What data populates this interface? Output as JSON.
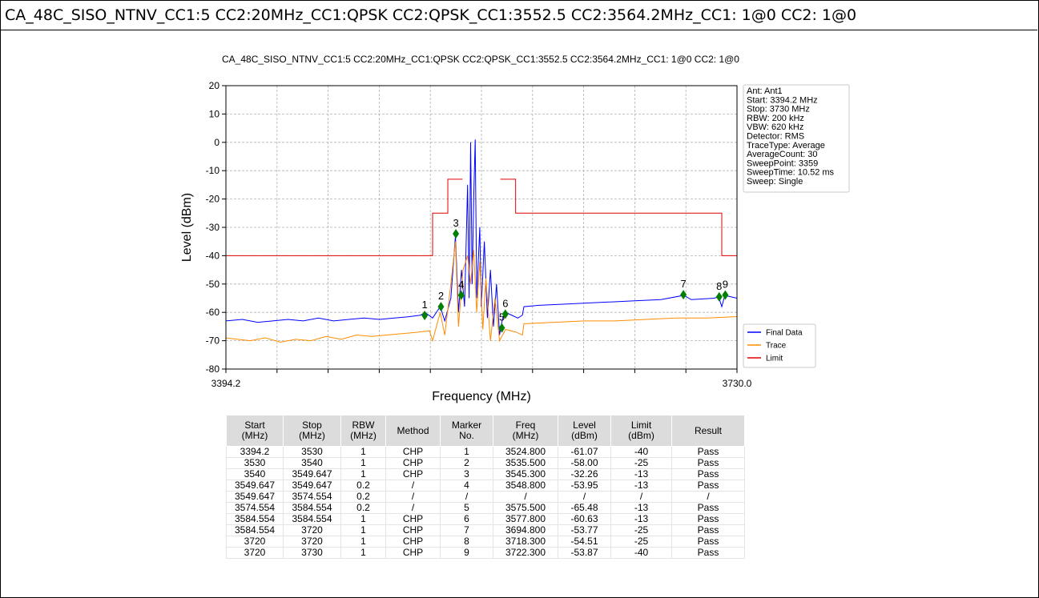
{
  "header": {
    "title": "CA_48C_SISO_NTNV_CC1:5 CC2:20MHz_CC1:QPSK CC2:QPSK_CC1:3552.5 CC2:3564.2MHz_CC1: 1@0 CC2: 1@0"
  },
  "chart_data": {
    "type": "line",
    "title": "CA_48C_SISO_NTNV_CC1:5 CC2:20MHz_CC1:QPSK CC2:QPSK_CC1:3552.5 CC2:3564.2MHz_CC1: 1@0 CC2: 1@0",
    "xlabel": "Frequency (MHz)",
    "ylabel": "Level (dBm)",
    "xlim": [
      3394.2,
      3730
    ],
    "ylim": [
      -80,
      20
    ],
    "xticks": [
      3394.2,
      {
        "value": 3730,
        "label": "3730.0"
      }
    ],
    "xgrid": [
      3427.78,
      3461.36,
      3494.94,
      3528.52,
      3562.1,
      3595.68,
      3629.26,
      3662.84,
      3696.42
    ],
    "yticks": [
      -80,
      -70,
      -60,
      -50,
      -40,
      -30,
      -20,
      -10,
      0,
      10,
      20
    ],
    "grid": true,
    "legend": "lower right",
    "series": [
      {
        "name": "Final Data",
        "color": "#0000ff",
        "x": [
          3394.2,
          3405,
          3415,
          3425,
          3435,
          3445,
          3455,
          3465,
          3475,
          3485,
          3495,
          3505,
          3515,
          3522,
          3525,
          3530,
          3535,
          3538,
          3542,
          3545,
          3547,
          3549,
          3551,
          3553,
          3554,
          3555,
          3556,
          3557,
          3558,
          3559,
          3561,
          3562,
          3564,
          3566,
          3568,
          3570,
          3572,
          3574,
          3576,
          3578,
          3582,
          3586,
          3589,
          3590,
          3600,
          3620,
          3640,
          3660,
          3680,
          3695,
          3700,
          3715,
          3718,
          3720,
          3722,
          3730
        ],
        "values": [
          -63,
          -62.5,
          -63.5,
          -63,
          -62.5,
          -63,
          -62,
          -63,
          -62.5,
          -62,
          -62.5,
          -62,
          -61.5,
          -61,
          -60,
          -62,
          -58,
          -63,
          -55,
          -33,
          -60,
          -45,
          -58,
          -15,
          -55,
          0,
          -50,
          -20,
          1,
          -55,
          -30,
          -58,
          -35,
          -62,
          -45,
          -65,
          -50,
          -68,
          -62,
          -60,
          -61,
          -62,
          -61,
          -58,
          -57.5,
          -57,
          -56.5,
          -56,
          -55.5,
          -54,
          -55.5,
          -55,
          -54.5,
          -58,
          -54,
          -55
        ]
      },
      {
        "name": "Trace",
        "color": "#ff8c00",
        "x": [
          3394.2,
          3410,
          3420,
          3430,
          3440,
          3450,
          3460,
          3470,
          3480,
          3490,
          3500,
          3510,
          3520,
          3528,
          3530,
          3535,
          3538,
          3542,
          3545,
          3547,
          3550,
          3553,
          3555,
          3557,
          3559,
          3561,
          3563,
          3565,
          3568,
          3571,
          3574,
          3578,
          3585,
          3589,
          3590,
          3610,
          3630,
          3650,
          3670,
          3690,
          3710,
          3730
        ],
        "values": [
          -69,
          -70,
          -69,
          -70.5,
          -69.5,
          -70,
          -68.5,
          -69.5,
          -68,
          -68.5,
          -68,
          -67.5,
          -67,
          -66.5,
          -70,
          -60,
          -68,
          -50,
          -35,
          -65,
          -45,
          -40,
          -50,
          -38,
          -60,
          -42,
          -66,
          -48,
          -70,
          -55,
          -70,
          -66,
          -67,
          -68,
          -64,
          -63.5,
          -63,
          -63,
          -62.5,
          -62,
          -62,
          -61.5
        ]
      },
      {
        "name": "Limit",
        "color": "#e00000",
        "x": [
          3394.2,
          3530,
          3530,
          3540,
          3540,
          3549.647,
          3562,
          3574.554,
          3584.554,
          3584.554,
          3720,
          3720,
          3730
        ],
        "values": [
          -40,
          -40,
          -25,
          -25,
          -13,
          -13,
          null,
          -13,
          -13,
          -25,
          -25,
          -40,
          -40
        ]
      }
    ],
    "markers": {
      "color": "#008000",
      "names": [
        "1",
        "2",
        "3",
        "4",
        "5",
        "6",
        "7",
        "8",
        "9"
      ],
      "x": [
        3524.8,
        3535.5,
        3545.3,
        3548.8,
        3575.5,
        3577.8,
        3694.8,
        3718.3,
        3722.3
      ],
      "values": [
        -61.07,
        -58.0,
        -32.26,
        -53.95,
        -65.48,
        -60.63,
        -53.77,
        -54.51,
        -53.87
      ]
    },
    "info": [
      "Ant: Ant1",
      "Start: 3394.2 MHz",
      "Stop: 3730 MHz",
      "RBW: 200 kHz",
      "VBW: 620 kHz",
      "Detector: RMS",
      "TraceType: Average",
      "AverageCount: 30",
      "SweepPoint: 3359",
      "SweepTime: 10.52 ms",
      "Sweep: Single"
    ]
  },
  "table": {
    "header": [
      "Start\n(MHz)",
      "Stop\n(MHz)",
      "RBW\n(MHz)",
      "Method",
      "Marker\nNo.",
      "Freq\n(MHz)",
      "Level\n(dBm)",
      "Limit\n(dBm)",
      "Result"
    ],
    "rows": [
      [
        "3394.2",
        "3530",
        "1",
        "CHP",
        "1",
        "3524.800",
        "-61.07",
        "-40",
        "Pass"
      ],
      [
        "3530",
        "3540",
        "1",
        "CHP",
        "2",
        "3535.500",
        "-58.00",
        "-25",
        "Pass"
      ],
      [
        "3540",
        "3549.647",
        "1",
        "CHP",
        "3",
        "3545.300",
        "-32.26",
        "-13",
        "Pass"
      ],
      [
        "3549.647",
        "3549.647",
        "0.2",
        "/",
        "4",
        "3548.800",
        "-53.95",
        "-13",
        "Pass"
      ],
      [
        "3549.647",
        "3574.554",
        "0.2",
        "/",
        "/",
        "/",
        "/",
        "/",
        "/"
      ],
      [
        "3574.554",
        "3584.554",
        "0.2",
        "/",
        "5",
        "3575.500",
        "-65.48",
        "-13",
        "Pass"
      ],
      [
        "3584.554",
        "3584.554",
        "1",
        "CHP",
        "6",
        "3577.800",
        "-60.63",
        "-13",
        "Pass"
      ],
      [
        "3584.554",
        "3720",
        "1",
        "CHP",
        "7",
        "3694.800",
        "-53.77",
        "-25",
        "Pass"
      ],
      [
        "3720",
        "3720",
        "1",
        "CHP",
        "8",
        "3718.300",
        "-54.51",
        "-25",
        "Pass"
      ],
      [
        "3720",
        "3730",
        "1",
        "CHP",
        "9",
        "3722.300",
        "-53.87",
        "-40",
        "Pass"
      ]
    ]
  }
}
